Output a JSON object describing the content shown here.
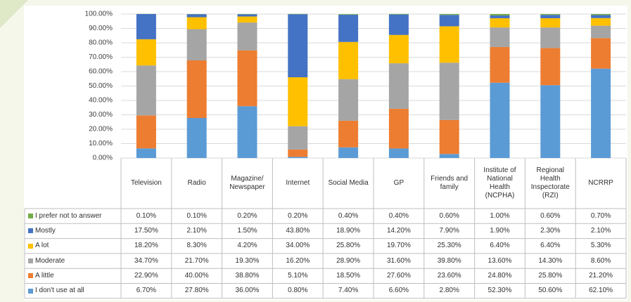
{
  "chart_data": {
    "type": "stacked_bar",
    "categories": [
      "Television",
      "Radio",
      "Magazine/ Newspaper",
      "Internet",
      "Social Media",
      "GP",
      "Friends and family",
      "Institute of National Health (NCPHA)",
      "Regional Health Inspectorate (RZI)",
      "NCRRP"
    ],
    "series": [
      {
        "name": "I prefer not to answer",
        "color": "#70ad47",
        "values": [
          0.1,
          0.1,
          0.2,
          0.2,
          0.4,
          0.4,
          0.6,
          1.0,
          0.6,
          0.7
        ],
        "value_labels": [
          "0.10%",
          "0.10%",
          "0.20%",
          "0.20%",
          "0.40%",
          "0.40%",
          "0.60%",
          "1.00%",
          "0.60%",
          "0.70%"
        ]
      },
      {
        "name": "Mostly",
        "color": "#4472c4",
        "values": [
          17.5,
          2.1,
          1.5,
          43.8,
          18.9,
          14.2,
          7.9,
          1.9,
          2.3,
          2.1
        ],
        "value_labels": [
          "17.50%",
          "2.10%",
          "1.50%",
          "43.80%",
          "18.90%",
          "14.20%",
          "7.90%",
          "1.90%",
          "2.30%",
          "2.10%"
        ]
      },
      {
        "name": "A lot",
        "color": "#ffc000",
        "values": [
          18.2,
          8.3,
          4.2,
          34.0,
          25.8,
          19.7,
          25.3,
          6.4,
          6.4,
          5.3
        ],
        "value_labels": [
          "18.20%",
          "8.30%",
          "4.20%",
          "34.00%",
          "25.80%",
          "19.70%",
          "25.30%",
          "6.40%",
          "6.40%",
          "5.30%"
        ]
      },
      {
        "name": "Moderate",
        "color": "#a5a5a5",
        "values": [
          34.7,
          21.7,
          19.3,
          16.2,
          28.9,
          31.6,
          39.8,
          13.6,
          14.3,
          8.6
        ],
        "value_labels": [
          "34.70%",
          "21.70%",
          "19.30%",
          "16.20%",
          "28.90%",
          "31.60%",
          "39.80%",
          "13.60%",
          "14.30%",
          "8.60%"
        ]
      },
      {
        "name": "A little",
        "color": "#ed7d31",
        "values": [
          22.9,
          40.0,
          38.8,
          5.1,
          18.5,
          27.6,
          23.6,
          24.8,
          25.8,
          21.2
        ],
        "value_labels": [
          "22.90%",
          "40.00%",
          "38.80%",
          "5.10%",
          "18.50%",
          "27.60%",
          "23.60%",
          "24.80%",
          "25.80%",
          "21.20%"
        ]
      },
      {
        "name": "I don't use at all",
        "color": "#5b9bd5",
        "values": [
          6.7,
          27.8,
          36.0,
          0.8,
          7.4,
          6.6,
          2.8,
          52.3,
          50.6,
          62.1
        ],
        "value_labels": [
          "6.70%",
          "27.80%",
          "36.00%",
          "0.80%",
          "7.40%",
          "6.60%",
          "2.80%",
          "52.30%",
          "50.60%",
          "62.10%"
        ]
      }
    ],
    "ylim": [
      0,
      100
    ],
    "yticks": [
      {
        "value": 0,
        "label": "0.00%"
      },
      {
        "value": 10,
        "label": "10.00%"
      },
      {
        "value": 20,
        "label": "20.00%"
      },
      {
        "value": 30,
        "label": "30.00%"
      },
      {
        "value": 40,
        "label": "40.00%"
      },
      {
        "value": 50,
        "label": "50.00%"
      },
      {
        "value": 60,
        "label": "60.00%"
      },
      {
        "value": 70,
        "label": "70.00%"
      },
      {
        "value": 80,
        "label": "80.00%"
      },
      {
        "value": 90,
        "label": "90.00%"
      },
      {
        "value": 100,
        "label": "100.00%"
      }
    ],
    "grid": true
  }
}
